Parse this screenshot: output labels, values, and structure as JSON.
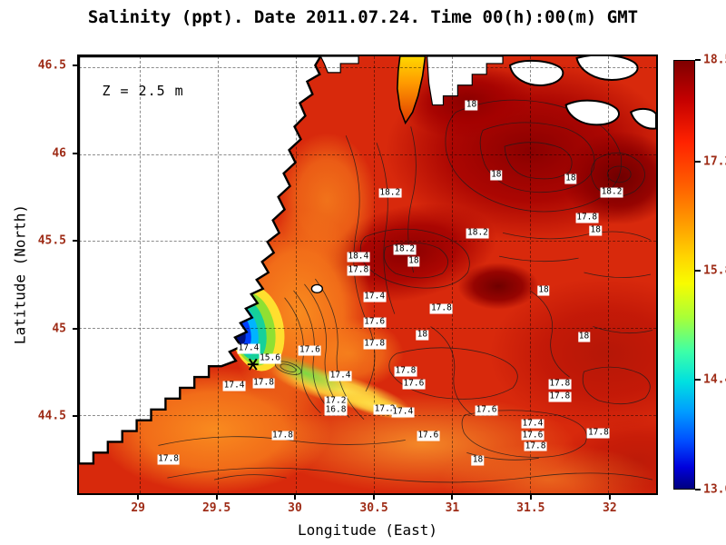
{
  "chart_data": {
    "type": "heatmap",
    "title": "Salinity (ppt). Date 2011.07.24. Time 00(h):00(m) GMT",
    "variable": "Salinity",
    "units": "ppt",
    "date": "2011.07.24",
    "time": "00(h):00(m) GMT",
    "annotation": "Z = 2.5 m",
    "xlabel": "Longitude (East)",
    "ylabel": "Latitude (North)",
    "grid": true,
    "xlim": [
      28.6,
      32.3
    ],
    "ylim": [
      44.0,
      46.56
    ],
    "x_ticks": [
      "29",
      "29.5",
      "30",
      "30.5",
      "31",
      "31.5",
      "32"
    ],
    "x_tick_pos": [
      10.5,
      24.0,
      37.5,
      51.1,
      64.6,
      78.1,
      91.7
    ],
    "y_ticks": [
      "46.5",
      "46",
      "45.5",
      "45",
      "44.5"
    ],
    "y_tick_pos": [
      2.5,
      22.4,
      42.3,
      62.2,
      82.1
    ],
    "land_color": "#ffffff",
    "coastline_color": "#000000",
    "colorbar": {
      "min": 13.0,
      "max": 18.5,
      "tick_labels": [
        "18.5",
        "17.2",
        "15.8",
        "14.4",
        "13.0"
      ],
      "tick_pos_pct": [
        0,
        23.6,
        49.1,
        74.5,
        100
      ],
      "stops": [
        {
          "c": "#7f0000",
          "p": 0
        },
        {
          "c": "#c40000",
          "p": 9
        },
        {
          "c": "#ff2200",
          "p": 19
        },
        {
          "c": "#ff5e00",
          "p": 29
        },
        {
          "c": "#ff9c00",
          "p": 38
        },
        {
          "c": "#ffd600",
          "p": 46
        },
        {
          "c": "#f8fc00",
          "p": 52
        },
        {
          "c": "#a8ff38",
          "p": 60
        },
        {
          "c": "#3cffa8",
          "p": 68
        },
        {
          "c": "#00e0e0",
          "p": 75
        },
        {
          "c": "#009cff",
          "p": 82
        },
        {
          "c": "#004cff",
          "p": 89
        },
        {
          "c": "#0000dc",
          "p": 95
        },
        {
          "c": "#00007f",
          "p": 100
        }
      ]
    },
    "contour_labels": [
      {
        "v": "18",
        "x": 68.0,
        "y": 11.3
      },
      {
        "v": "18.2",
        "x": 53.9,
        "y": 31.3
      },
      {
        "v": "18",
        "x": 72.3,
        "y": 27.2
      },
      {
        "v": "18",
        "x": 85.2,
        "y": 28.0
      },
      {
        "v": "18.2",
        "x": 92.3,
        "y": 31.1
      },
      {
        "v": "17.8",
        "x": 88.0,
        "y": 37.1
      },
      {
        "v": "18",
        "x": 89.5,
        "y": 40.0
      },
      {
        "v": "18.2",
        "x": 69.1,
        "y": 40.6
      },
      {
        "v": "18.2",
        "x": 56.4,
        "y": 44.3
      },
      {
        "v": "18.4",
        "x": 48.4,
        "y": 46.0
      },
      {
        "v": "18",
        "x": 58.0,
        "y": 47.0
      },
      {
        "v": "17.8",
        "x": 48.4,
        "y": 49.1
      },
      {
        "v": "18",
        "x": 80.5,
        "y": 53.6
      },
      {
        "v": "17.4",
        "x": 51.2,
        "y": 55.1
      },
      {
        "v": "17.8",
        "x": 62.8,
        "y": 57.9
      },
      {
        "v": "17.6",
        "x": 51.2,
        "y": 61.0
      },
      {
        "v": "18",
        "x": 59.5,
        "y": 63.9
      },
      {
        "v": "17.8",
        "x": 51.2,
        "y": 66.0
      },
      {
        "v": "18",
        "x": 87.5,
        "y": 64.3
      },
      {
        "v": "17.4",
        "x": 29.4,
        "y": 67.0
      },
      {
        "v": "15.6",
        "x": 33.1,
        "y": 69.3
      },
      {
        "v": "17.6",
        "x": 40.0,
        "y": 67.4
      },
      {
        "v": "17.4",
        "x": 45.3,
        "y": 73.2
      },
      {
        "v": "17.8",
        "x": 32.0,
        "y": 74.8
      },
      {
        "v": "17.4",
        "x": 26.9,
        "y": 75.5
      },
      {
        "v": "17.8",
        "x": 56.6,
        "y": 72.2
      },
      {
        "v": "17.6",
        "x": 58.0,
        "y": 75.1
      },
      {
        "v": "17.2",
        "x": 44.5,
        "y": 79.0
      },
      {
        "v": "16.8",
        "x": 44.5,
        "y": 81.0
      },
      {
        "v": "17.2",
        "x": 53.0,
        "y": 80.8
      },
      {
        "v": "17.4",
        "x": 56.1,
        "y": 81.6
      },
      {
        "v": "17.6",
        "x": 70.6,
        "y": 81.0
      },
      {
        "v": "17.8",
        "x": 83.3,
        "y": 75.1
      },
      {
        "v": "17.8",
        "x": 83.3,
        "y": 77.9
      },
      {
        "v": "17.4",
        "x": 78.6,
        "y": 84.1
      },
      {
        "v": "17.6",
        "x": 78.6,
        "y": 86.8
      },
      {
        "v": "17.8",
        "x": 79.1,
        "y": 89.3
      },
      {
        "v": "17.8",
        "x": 90.0,
        "y": 86.2
      },
      {
        "v": "17.8",
        "x": 35.3,
        "y": 86.8
      },
      {
        "v": "17.6",
        "x": 60.5,
        "y": 87.0
      },
      {
        "v": "18",
        "x": 69.1,
        "y": 92.6
      },
      {
        "v": "17.8",
        "x": 15.5,
        "y": 92.4
      }
    ]
  }
}
